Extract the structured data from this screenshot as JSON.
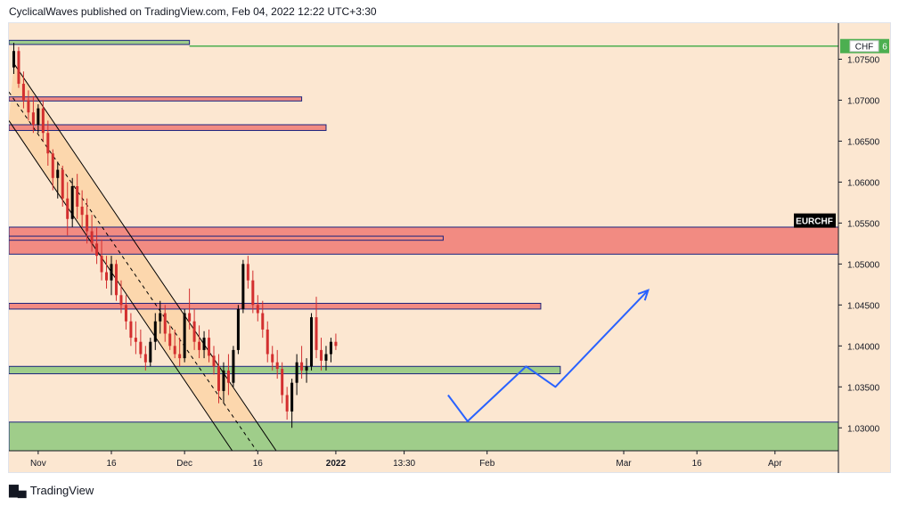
{
  "header": {
    "published_text": "CyclicalWaves published on TradingView.com, Feb 04, 2022 12:22 UTC+3:30"
  },
  "footer": {
    "brand": "TradingView"
  },
  "chart_data": {
    "type": "candlestick",
    "symbol_label": "EURCHF",
    "currency_badge": "CHF",
    "price_badge_fragment": "6",
    "y_ticks": [
      "1.07500",
      "1.07000",
      "1.06500",
      "1.06000",
      "1.05500",
      "1.05000",
      "1.04500",
      "1.04000",
      "1.03500",
      "1.03000"
    ],
    "x_ticks": [
      {
        "label": "Nov",
        "day": 0,
        "bold": false
      },
      {
        "label": "16",
        "day": 15,
        "bold": false
      },
      {
        "label": "Dec",
        "day": 30,
        "bold": false
      },
      {
        "label": "16",
        "day": 45,
        "bold": false
      },
      {
        "label": "2022",
        "day": 61,
        "bold": true
      },
      {
        "label": "13:30",
        "day": 75,
        "bold": false
      },
      {
        "label": "Feb",
        "day": 92,
        "bold": false
      },
      {
        "label": "Mar",
        "day": 120,
        "bold": false
      },
      {
        "label": "16",
        "day": 135,
        "bold": false
      },
      {
        "label": "Apr",
        "day": 151,
        "bold": false
      }
    ],
    "y_range": [
      1.0272,
      1.0794
    ],
    "x_range_days": [
      -6,
      164
    ],
    "colors": {
      "background": "#fce7d1",
      "candle_up": "#000000",
      "candle_down": "#d32f2f",
      "resistance_zone": "#f28b82",
      "support_zone": "#9fcd8a",
      "zone_border": "#1a237e",
      "projection": "#2962ff",
      "horizontal_line": "#4caf50",
      "channel_fill": "#fbd4a7"
    },
    "zones": [
      {
        "type": "resistance",
        "from_day": -6,
        "to_day": 164,
        "low": 1.0512,
        "high": 1.0545
      },
      {
        "type": "resistance",
        "from_day": -6,
        "to_day": 83,
        "low": 1.0529,
        "high": 1.0534
      },
      {
        "type": "resistance",
        "from_day": -6,
        "to_day": 59,
        "low": 1.0663,
        "high": 1.067
      },
      {
        "type": "resistance",
        "from_day": -6,
        "to_day": 54,
        "low": 1.0699,
        "high": 1.0704
      },
      {
        "type": "resistance",
        "from_day": -6,
        "to_day": 103,
        "low": 1.0445,
        "high": 1.0452
      },
      {
        "type": "support",
        "from_day": -6,
        "to_day": 107,
        "low": 1.0366,
        "high": 1.0375
      },
      {
        "type": "support",
        "from_day": -6,
        "to_day": 164,
        "low": 1.027,
        "high": 1.0307
      },
      {
        "type": "support",
        "from_day": -6,
        "to_day": 31,
        "low": 1.0768,
        "high": 1.0773
      }
    ],
    "horizontal_line": {
      "price": 1.0766,
      "from_day": 31,
      "to_day": 164
    },
    "channel": {
      "upper": [
        {
          "day": -5,
          "price": 1.0745
        },
        {
          "day": 49,
          "price": 1.027
        }
      ],
      "lower": [
        {
          "day": -6,
          "price": 1.0675
        },
        {
          "day": 40,
          "price": 1.027
        }
      ],
      "midline": [
        {
          "day": -6,
          "price": 1.071
        },
        {
          "day": 45,
          "price": 1.027
        }
      ]
    },
    "projection_path": [
      {
        "day": 84,
        "price": 1.034
      },
      {
        "day": 88,
        "price": 1.0308
      },
      {
        "day": 100,
        "price": 1.0375
      },
      {
        "day": 106,
        "price": 1.035
      },
      {
        "day": 125,
        "price": 1.0468
      }
    ],
    "candles": [
      [
        -5,
        1.074,
        1.077,
        1.0732,
        1.076
      ],
      [
        -4,
        1.076,
        1.0765,
        1.0715,
        1.072
      ],
      [
        -3,
        1.072,
        1.0735,
        1.069,
        1.07
      ],
      [
        -2,
        1.07,
        1.0712,
        1.0675,
        1.0685
      ],
      [
        -1,
        1.0685,
        1.0705,
        1.066,
        1.067
      ],
      [
        0,
        1.067,
        1.0695,
        1.066,
        1.069
      ],
      [
        1,
        1.069,
        1.07,
        1.065,
        1.066
      ],
      [
        2,
        1.066,
        1.0675,
        1.062,
        1.0635
      ],
      [
        3,
        1.0635,
        1.064,
        1.059,
        1.0605
      ],
      [
        4,
        1.0605,
        1.0625,
        1.058,
        1.0615
      ],
      [
        5,
        1.0615,
        1.062,
        1.057,
        1.058
      ],
      [
        6,
        1.058,
        1.06,
        1.0535,
        1.0555
      ],
      [
        7,
        1.0555,
        1.0605,
        1.0545,
        1.0595
      ],
      [
        8,
        1.0595,
        1.061,
        1.0555,
        1.057
      ],
      [
        9,
        1.057,
        1.059,
        1.0545,
        1.056
      ],
      [
        10,
        1.056,
        1.058,
        1.0525,
        1.054
      ],
      [
        11,
        1.054,
        1.056,
        1.0515,
        1.0525
      ],
      [
        12,
        1.0525,
        1.0545,
        1.05,
        1.051
      ],
      [
        13,
        1.051,
        1.053,
        1.048,
        1.049
      ],
      [
        14,
        1.049,
        1.051,
        1.047,
        1.048
      ],
      [
        15,
        1.048,
        1.051,
        1.0462,
        1.05
      ],
      [
        16,
        1.05,
        1.0505,
        1.0455,
        1.0462
      ],
      [
        17,
        1.0462,
        1.048,
        1.044,
        1.045
      ],
      [
        18,
        1.045,
        1.0462,
        1.042,
        1.043
      ],
      [
        19,
        1.043,
        1.044,
        1.04,
        1.041
      ],
      [
        20,
        1.041,
        1.043,
        1.039,
        1.0405
      ],
      [
        21,
        1.0405,
        1.042,
        1.0385,
        1.039
      ],
      [
        22,
        1.039,
        1.04,
        1.037,
        1.038
      ],
      [
        23,
        1.038,
        1.041,
        1.0375,
        1.0405
      ],
      [
        24,
        1.0405,
        1.044,
        1.0395,
        1.043
      ],
      [
        25,
        1.043,
        1.0455,
        1.0415,
        1.044
      ],
      [
        26,
        1.044,
        1.045,
        1.0405,
        1.0415
      ],
      [
        27,
        1.0415,
        1.0425,
        1.0395,
        1.04
      ],
      [
        28,
        1.04,
        1.042,
        1.0385,
        1.039
      ],
      [
        29,
        1.039,
        1.041,
        1.0375,
        1.0385
      ],
      [
        30,
        1.0385,
        1.0445,
        1.038,
        1.044
      ],
      [
        31,
        1.044,
        1.047,
        1.042,
        1.043
      ],
      [
        32,
        1.043,
        1.0445,
        1.0395,
        1.0405
      ],
      [
        33,
        1.0405,
        1.0425,
        1.0385,
        1.0395
      ],
      [
        34,
        1.0395,
        1.0418,
        1.0385,
        1.041
      ],
      [
        35,
        1.041,
        1.042,
        1.038,
        1.0388
      ],
      [
        36,
        1.0388,
        1.04,
        1.0365,
        1.0375
      ],
      [
        37,
        1.0375,
        1.039,
        1.033,
        1.0345
      ],
      [
        38,
        1.0345,
        1.038,
        1.033,
        1.037
      ],
      [
        39,
        1.037,
        1.039,
        1.034,
        1.0355
      ],
      [
        40,
        1.0355,
        1.04,
        1.035,
        1.0395
      ],
      [
        41,
        1.0395,
        1.045,
        1.039,
        1.0445
      ],
      [
        42,
        1.0445,
        1.0505,
        1.044,
        1.05
      ],
      [
        43,
        1.05,
        1.051,
        1.047,
        1.048
      ],
      [
        44,
        1.048,
        1.0492,
        1.044,
        1.045
      ],
      [
        45,
        1.045,
        1.0462,
        1.043,
        1.044
      ],
      [
        46,
        1.044,
        1.0455,
        1.041,
        1.042
      ],
      [
        47,
        1.042,
        1.043,
        1.038,
        1.039
      ],
      [
        48,
        1.039,
        1.04,
        1.037,
        1.038
      ],
      [
        49,
        1.038,
        1.0395,
        1.036,
        1.0372
      ],
      [
        50,
        1.0372,
        1.038,
        1.033,
        1.034
      ],
      [
        51,
        1.034,
        1.035,
        1.031,
        1.032
      ],
      [
        52,
        1.032,
        1.036,
        1.03,
        1.0355
      ],
      [
        53,
        1.0355,
        1.039,
        1.034,
        1.038
      ],
      [
        54,
        1.038,
        1.04,
        1.036,
        1.037
      ],
      [
        55,
        1.037,
        1.0385,
        1.0355,
        1.0375
      ],
      [
        56,
        1.0375,
        1.044,
        1.037,
        1.0435
      ],
      [
        57,
        1.0435,
        1.046,
        1.0385,
        1.0395
      ],
      [
        58,
        1.0395,
        1.041,
        1.037,
        1.0382
      ],
      [
        59,
        1.0382,
        1.04,
        1.037,
        1.039
      ],
      [
        60,
        1.039,
        1.041,
        1.038,
        1.0405
      ],
      [
        61,
        1.0405,
        1.0415,
        1.0395,
        1.04
      ]
    ]
  }
}
